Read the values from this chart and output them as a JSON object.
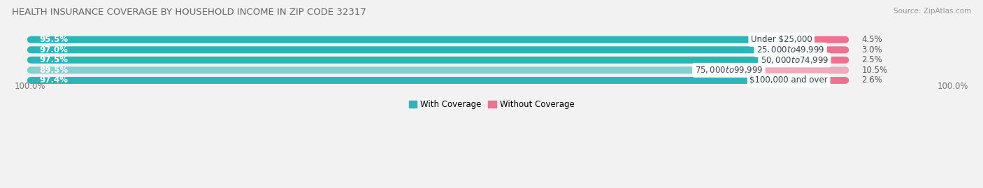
{
  "title": "HEALTH INSURANCE COVERAGE BY HOUSEHOLD INCOME IN ZIP CODE 32317",
  "source": "Source: ZipAtlas.com",
  "categories": [
    "Under $25,000",
    "$25,000 to $49,999",
    "$50,000 to $74,999",
    "$75,000 to $99,999",
    "$100,000 and over"
  ],
  "with_coverage": [
    95.5,
    97.0,
    97.5,
    89.5,
    97.4
  ],
  "without_coverage": [
    4.5,
    3.0,
    2.5,
    10.5,
    2.6
  ],
  "color_with": "#2bb5b8",
  "color_without": "#f07090",
  "color_with_light": "#85cfd1",
  "color_without_light": "#f5a8bc",
  "background_color": "#f2f2f2",
  "bar_bg_color": "#e2e2e2",
  "title_fontsize": 9.5,
  "label_fontsize": 8.5,
  "pct_fontsize": 8.5,
  "tick_fontsize": 8.5,
  "legend_fontsize": 8.5,
  "bar_height": 0.68,
  "bar_gap": 0.32,
  "total_width": 100,
  "xlim_left": -2,
  "xlim_right": 115
}
